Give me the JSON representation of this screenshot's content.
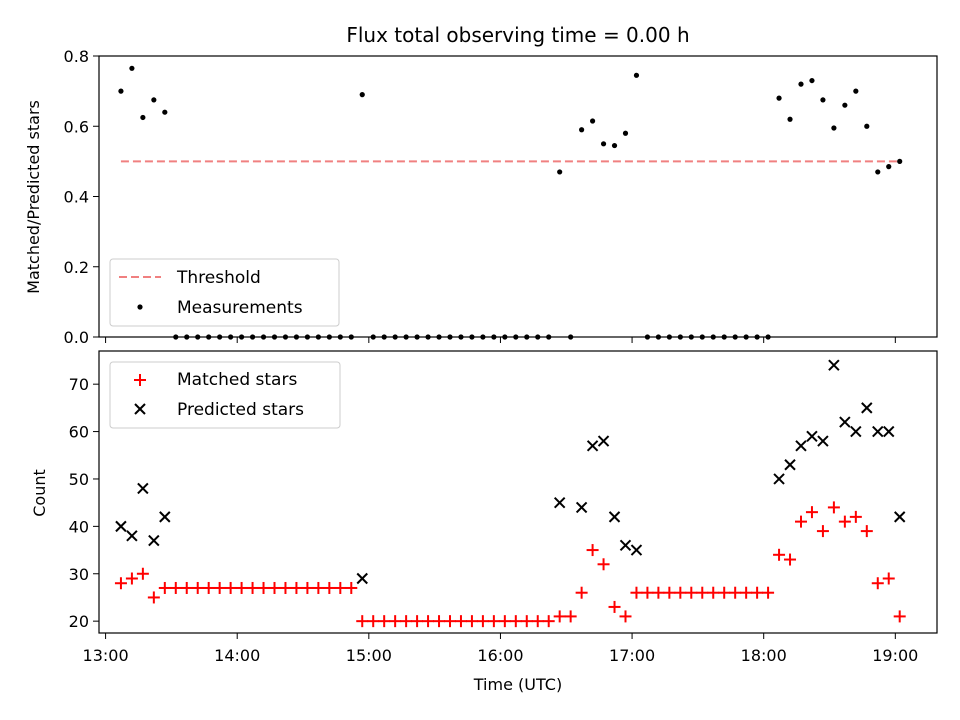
{
  "chart_data": [
    {
      "type": "scatter",
      "title": "Flux total observing time = 0.00 h",
      "xlabel": "",
      "ylabel": "Matched/Predicted stars",
      "ylim": [
        0,
        0.8
      ],
      "yticks": [
        "0.0",
        "0.2",
        "0.4",
        "0.6",
        "0.8"
      ],
      "xlim": [
        "12:57",
        "19:19"
      ],
      "legend_position": "lower-left",
      "threshold": {
        "name": "Threshold",
        "value": 0.5,
        "x_start": "13:07",
        "x_end": "19:02",
        "color": "#f08080"
      },
      "series": [
        {
          "name": "Measurements",
          "color": "#000000",
          "points": [
            [
              "13:07",
              0.7
            ],
            [
              "13:12",
              0.765
            ],
            [
              "13:17",
              0.625
            ],
            [
              "13:22",
              0.675
            ],
            [
              "13:27",
              0.64
            ],
            [
              "13:32",
              0
            ],
            [
              "13:37",
              0
            ],
            [
              "13:42",
              0
            ],
            [
              "13:47",
              0
            ],
            [
              "13:52",
              0
            ],
            [
              "13:57",
              0
            ],
            [
              "14:02",
              0
            ],
            [
              "14:07",
              0
            ],
            [
              "14:12",
              0
            ],
            [
              "14:17",
              0
            ],
            [
              "14:22",
              0
            ],
            [
              "14:27",
              0
            ],
            [
              "14:32",
              0
            ],
            [
              "14:37",
              0
            ],
            [
              "14:42",
              0
            ],
            [
              "14:47",
              0
            ],
            [
              "14:52",
              0
            ],
            [
              "14:57",
              0.69
            ],
            [
              "15:02",
              0
            ],
            [
              "15:07",
              0
            ],
            [
              "15:12",
              0
            ],
            [
              "15:17",
              0
            ],
            [
              "15:22",
              0
            ],
            [
              "15:27",
              0
            ],
            [
              "15:32",
              0
            ],
            [
              "15:37",
              0
            ],
            [
              "15:42",
              0
            ],
            [
              "15:47",
              0
            ],
            [
              "15:52",
              0
            ],
            [
              "15:57",
              0
            ],
            [
              "16:02",
              0
            ],
            [
              "16:07",
              0
            ],
            [
              "16:12",
              0
            ],
            [
              "16:17",
              0
            ],
            [
              "16:22",
              0
            ],
            [
              "16:27",
              0.47
            ],
            [
              "16:32",
              0
            ],
            [
              "16:37",
              0.59
            ],
            [
              "16:42",
              0.615
            ],
            [
              "16:47",
              0.55
            ],
            [
              "16:52",
              0.545
            ],
            [
              "16:57",
              0.58
            ],
            [
              "17:02",
              0.745
            ],
            [
              "17:07",
              0
            ],
            [
              "17:12",
              0
            ],
            [
              "17:17",
              0
            ],
            [
              "17:22",
              0
            ],
            [
              "17:27",
              0
            ],
            [
              "17:32",
              0
            ],
            [
              "17:37",
              0
            ],
            [
              "17:42",
              0
            ],
            [
              "17:47",
              0
            ],
            [
              "17:52",
              0
            ],
            [
              "17:57",
              0
            ],
            [
              "18:02",
              0
            ],
            [
              "18:07",
              0.68
            ],
            [
              "18:12",
              0.62
            ],
            [
              "18:17",
              0.72
            ],
            [
              "18:22",
              0.73
            ],
            [
              "18:27",
              0.675
            ],
            [
              "18:32",
              0.595
            ],
            [
              "18:37",
              0.66
            ],
            [
              "18:42",
              0.7
            ],
            [
              "18:47",
              0.6
            ],
            [
              "18:52",
              0.47
            ],
            [
              "18:57",
              0.485
            ],
            [
              "19:02",
              0.5
            ]
          ]
        }
      ]
    },
    {
      "type": "scatter",
      "title": "",
      "xlabel": "Time (UTC)",
      "ylabel": "Count",
      "ylim": [
        17.5,
        77
      ],
      "yticks": [
        "20",
        "30",
        "40",
        "50",
        "60",
        "70"
      ],
      "xlim": [
        "12:57",
        "19:19"
      ],
      "xticks": [
        "13:00",
        "14:00",
        "15:00",
        "16:00",
        "17:00",
        "18:00",
        "19:00"
      ],
      "legend_position": "upper-left",
      "series": [
        {
          "name": "Matched stars",
          "color": "#ff0000",
          "marker": "plus",
          "points": [
            [
              "13:07",
              28
            ],
            [
              "13:12",
              29
            ],
            [
              "13:17",
              30
            ],
            [
              "13:22",
              25
            ],
            [
              "13:27",
              27
            ],
            [
              "13:32",
              27
            ],
            [
              "13:37",
              27
            ],
            [
              "13:42",
              27
            ],
            [
              "13:47",
              27
            ],
            [
              "13:52",
              27
            ],
            [
              "13:57",
              27
            ],
            [
              "14:02",
              27
            ],
            [
              "14:07",
              27
            ],
            [
              "14:12",
              27
            ],
            [
              "14:17",
              27
            ],
            [
              "14:22",
              27
            ],
            [
              "14:27",
              27
            ],
            [
              "14:32",
              27
            ],
            [
              "14:37",
              27
            ],
            [
              "14:42",
              27
            ],
            [
              "14:47",
              27
            ],
            [
              "14:52",
              27
            ],
            [
              "14:57",
              20
            ],
            [
              "15:02",
              20
            ],
            [
              "15:07",
              20
            ],
            [
              "15:12",
              20
            ],
            [
              "15:17",
              20
            ],
            [
              "15:22",
              20
            ],
            [
              "15:27",
              20
            ],
            [
              "15:32",
              20
            ],
            [
              "15:37",
              20
            ],
            [
              "15:42",
              20
            ],
            [
              "15:47",
              20
            ],
            [
              "15:52",
              20
            ],
            [
              "15:57",
              20
            ],
            [
              "16:02",
              20
            ],
            [
              "16:07",
              20
            ],
            [
              "16:12",
              20
            ],
            [
              "16:17",
              20
            ],
            [
              "16:22",
              20
            ],
            [
              "16:27",
              21
            ],
            [
              "16:32",
              21
            ],
            [
              "16:37",
              26
            ],
            [
              "16:42",
              35
            ],
            [
              "16:47",
              32
            ],
            [
              "16:52",
              23
            ],
            [
              "16:57",
              21
            ],
            [
              "17:02",
              26
            ],
            [
              "17:07",
              26
            ],
            [
              "17:12",
              26
            ],
            [
              "17:17",
              26
            ],
            [
              "17:22",
              26
            ],
            [
              "17:27",
              26
            ],
            [
              "17:32",
              26
            ],
            [
              "17:37",
              26
            ],
            [
              "17:42",
              26
            ],
            [
              "17:47",
              26
            ],
            [
              "17:52",
              26
            ],
            [
              "17:57",
              26
            ],
            [
              "18:02",
              26
            ],
            [
              "18:07",
              34
            ],
            [
              "18:12",
              33
            ],
            [
              "18:17",
              41
            ],
            [
              "18:22",
              43
            ],
            [
              "18:27",
              39
            ],
            [
              "18:32",
              44
            ],
            [
              "18:37",
              41
            ],
            [
              "18:42",
              42
            ],
            [
              "18:47",
              39
            ],
            [
              "18:52",
              28
            ],
            [
              "18:57",
              29
            ],
            [
              "19:02",
              21
            ]
          ]
        },
        {
          "name": "Predicted stars",
          "color": "#000000",
          "marker": "x",
          "points": [
            [
              "13:07",
              40
            ],
            [
              "13:12",
              38
            ],
            [
              "13:17",
              48
            ],
            [
              "13:22",
              37
            ],
            [
              "13:27",
              42
            ],
            [
              "14:57",
              29
            ],
            [
              "16:27",
              45
            ],
            [
              "16:37",
              44
            ],
            [
              "16:42",
              57
            ],
            [
              "16:47",
              58
            ],
            [
              "16:52",
              42
            ],
            [
              "16:57",
              36
            ],
            [
              "17:02",
              35
            ],
            [
              "18:07",
              50
            ],
            [
              "18:12",
              53
            ],
            [
              "18:17",
              57
            ],
            [
              "18:22",
              59
            ],
            [
              "18:27",
              58
            ],
            [
              "18:32",
              74
            ],
            [
              "18:37",
              62
            ],
            [
              "18:42",
              60
            ],
            [
              "18:47",
              65
            ],
            [
              "18:52",
              60
            ],
            [
              "18:57",
              60
            ],
            [
              "19:02",
              42
            ]
          ]
        }
      ]
    }
  ]
}
